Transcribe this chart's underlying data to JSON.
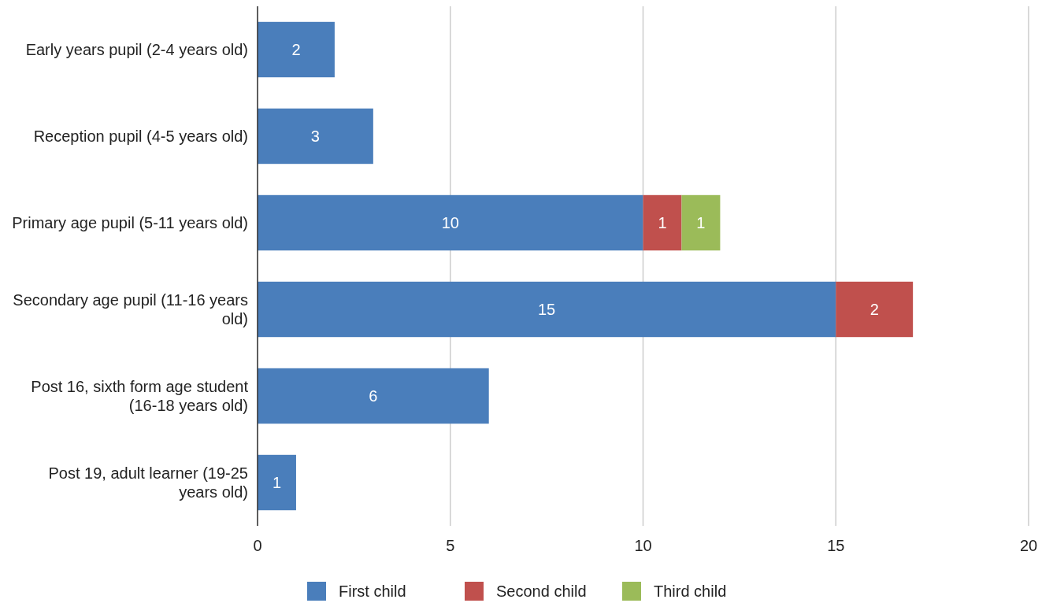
{
  "chart_data": {
    "type": "bar",
    "orientation": "horizontal",
    "stacked": true,
    "categories": [
      "Early years pupil (2-4 years old)",
      "Reception pupil (4-5 years old)",
      "Primary age pupil (5-11 years old)",
      "Secondary age pupil (11-16 years old)",
      "Post 16, sixth form age student (16-18 years old)",
      "Post 19, adult learner (19-25 years old)"
    ],
    "series": [
      {
        "name": "First child",
        "color": "#4a7ebb",
        "values": [
          2,
          3,
          10,
          15,
          6,
          1
        ]
      },
      {
        "name": "Second child",
        "color": "#c0504d",
        "values": [
          null,
          null,
          1,
          2,
          null,
          null
        ]
      },
      {
        "name": "Third child",
        "color": "#9bbb59",
        "values": [
          null,
          null,
          1,
          null,
          null,
          null
        ]
      }
    ],
    "xlim": [
      0,
      20
    ],
    "xticks": [
      0,
      5,
      10,
      15,
      20
    ],
    "grid": "x",
    "data_labels": true,
    "legend": "bottom"
  }
}
